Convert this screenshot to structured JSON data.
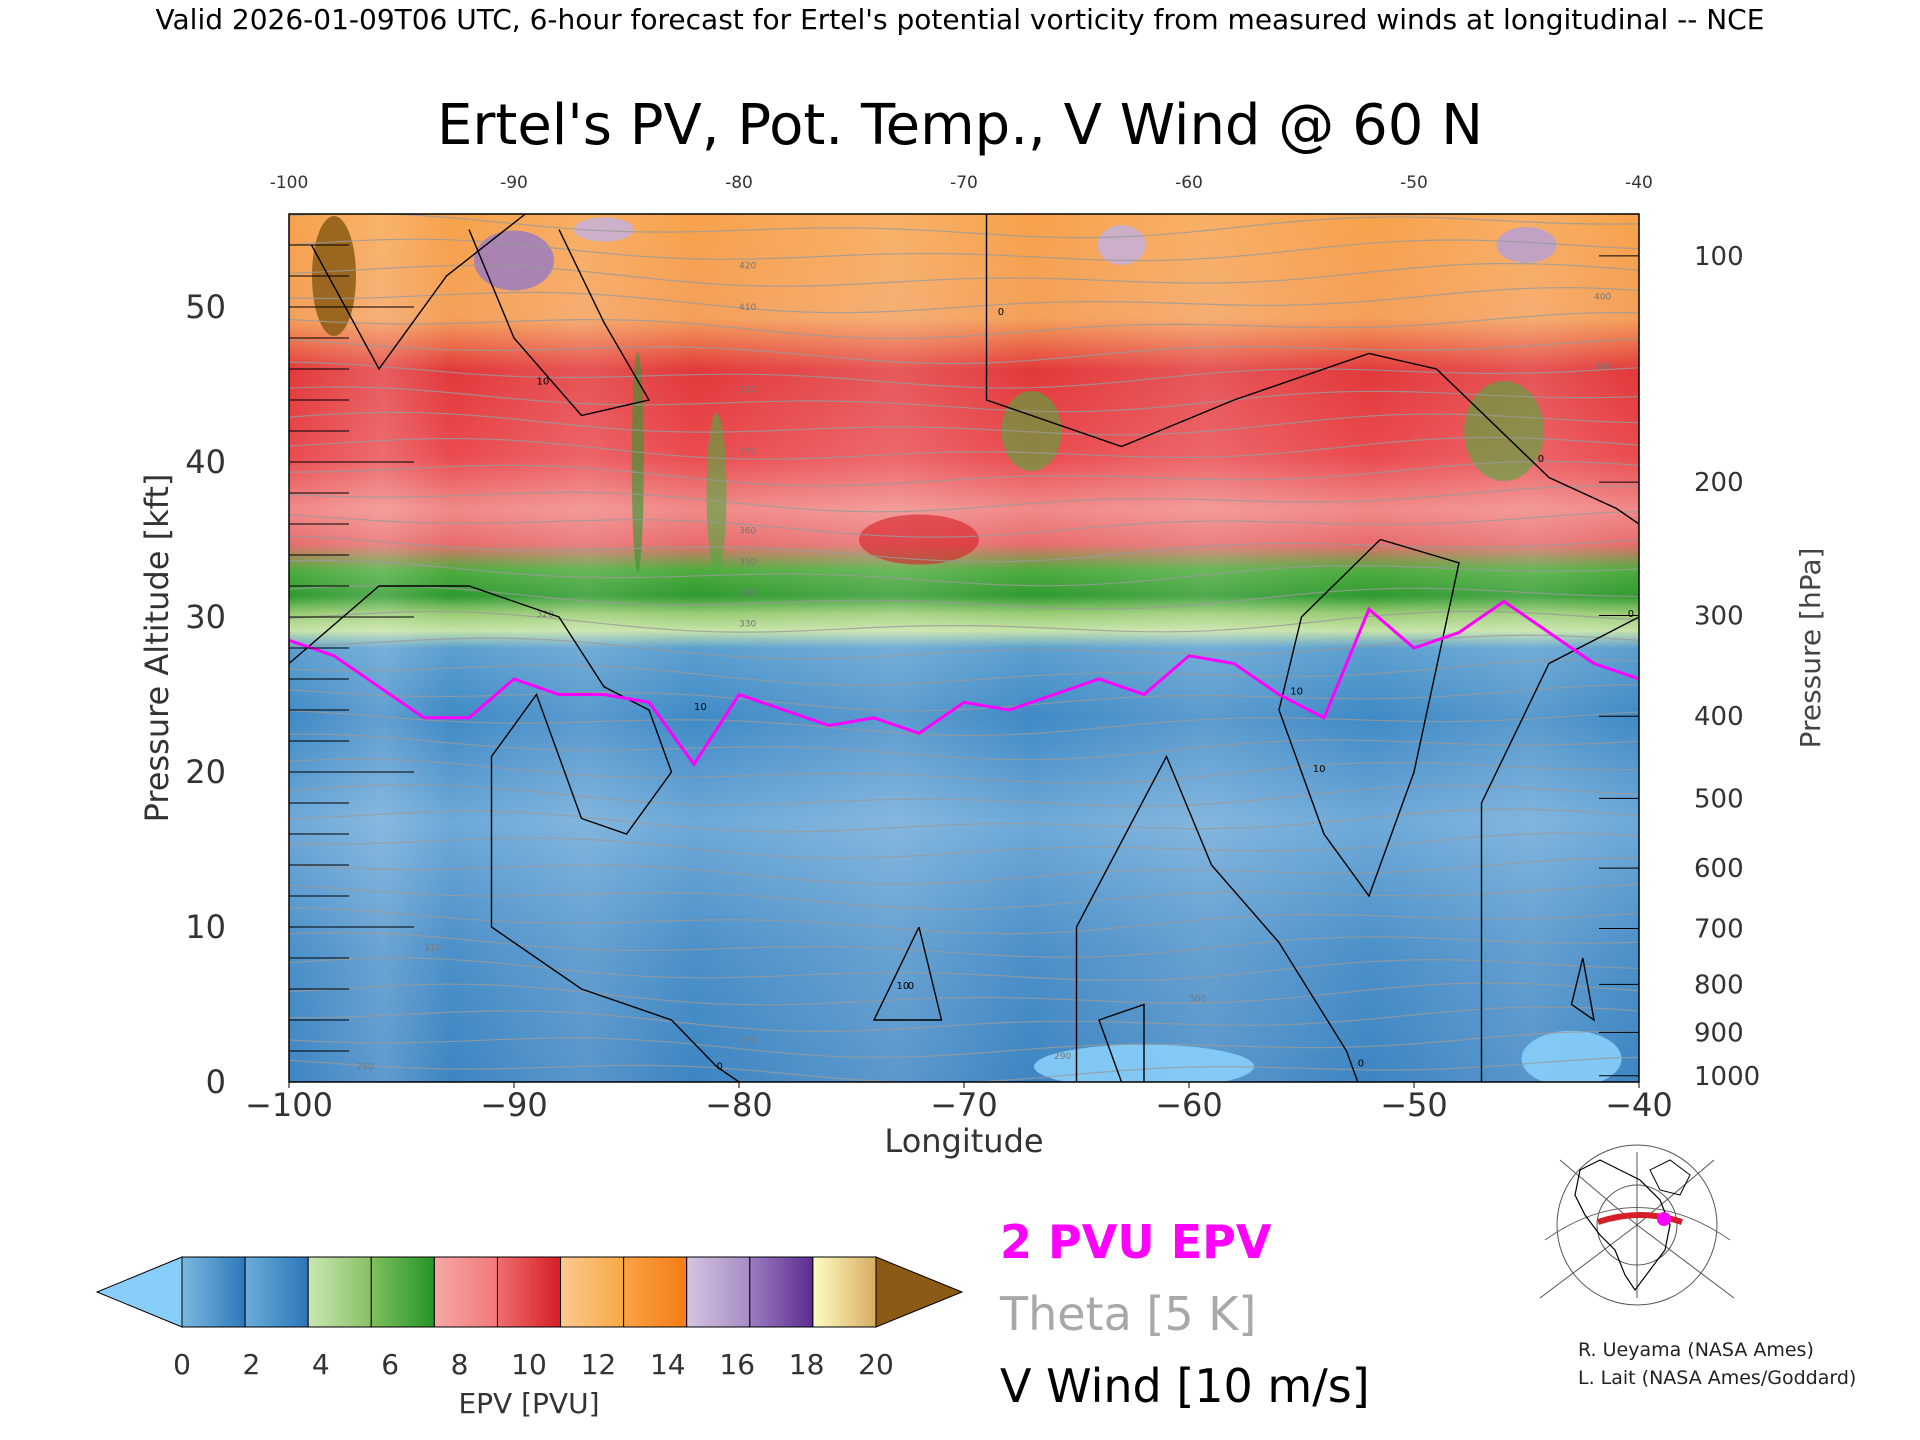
{
  "header": {
    "valid_line": "Valid 2026-01-09T06 UTC, 6-hour forecast for Ertel's potential vorticity from measured winds at longitudinal -- NCE"
  },
  "chart_data": {
    "type": "heatmap",
    "title": "Ertel's PV, Pot. Temp., V Wind @ 60 N",
    "xlabel": "Longitude",
    "ylabel_left": "Pressure Altitude [kft]",
    "ylabel_right": "Pressure [hPa]",
    "xlim": [
      -100,
      -40
    ],
    "ylim": [
      0,
      56
    ],
    "x_ticks": [
      -100,
      -90,
      -80,
      -70,
      -60,
      -50,
      -40
    ],
    "x_tick_labels": [
      "−100",
      "−90",
      "−80",
      "−70",
      "−60",
      "−50",
      "−40"
    ],
    "top_tick_labels": [
      "-100",
      "-90",
      "-80",
      "-70",
      "-60",
      "-50",
      "-40"
    ],
    "y_ticks": [
      0,
      10,
      20,
      30,
      40,
      50
    ],
    "y_tick_labels": [
      "0",
      "10",
      "20",
      "30",
      "40",
      "50"
    ],
    "pressure_ticks": [
      {
        "label": "100",
        "kft": 53.3
      },
      {
        "label": "200",
        "kft": 38.7
      },
      {
        "label": "300",
        "kft": 30.1
      },
      {
        "label": "400",
        "kft": 23.6
      },
      {
        "label": "500",
        "kft": 18.3
      },
      {
        "label": "600",
        "kft": 13.8
      },
      {
        "label": "700",
        "kft": 9.9
      },
      {
        "label": "800",
        "kft": 6.3
      },
      {
        "label": "900",
        "kft": 3.2
      },
      {
        "label": "1000",
        "kft": 0.4
      }
    ],
    "epv_profile": {
      "longitudes": [
        -100,
        -98,
        -96,
        -94,
        -92,
        -90,
        -88,
        -86,
        -84,
        -82,
        -80,
        -78,
        -76,
        -74,
        -72,
        -70,
        -68,
        -66,
        -64,
        -62,
        -60,
        -58,
        -56,
        -54,
        -52,
        -50,
        -48,
        -46,
        -44,
        -42,
        -40
      ],
      "two_pvu_altitude_kft": [
        28.5,
        27.5,
        25.5,
        23.5,
        23.5,
        26,
        25,
        25,
        24.5,
        20.5,
        25,
        24,
        23,
        23.5,
        22.5,
        24.5,
        24,
        25,
        26,
        25,
        27.5,
        27,
        25,
        23.5,
        30.5,
        28,
        29,
        31,
        29,
        27,
        26
      ]
    },
    "theta_contours_K": [
      260,
      265,
      270,
      275,
      280,
      285,
      290,
      295,
      300,
      305,
      310,
      315,
      320,
      325,
      330,
      335,
      340,
      345,
      350,
      355,
      360,
      365,
      370,
      375,
      380,
      385,
      390,
      395,
      400,
      405,
      410,
      415,
      420,
      425,
      430
    ],
    "theta_labels": [
      "260",
      "270",
      "290",
      "300",
      "310",
      "320",
      "330",
      "340",
      "350",
      "360",
      "370",
      "380",
      "390",
      "400",
      "410",
      "420"
    ],
    "v_wind_contour_labels": [
      "0",
      "10",
      "10",
      "0",
      "0",
      "10",
      "10",
      "0",
      "0",
      "0",
      "10"
    ],
    "colorbar": {
      "label": "EPV [PVU]",
      "tick_labels": [
        "0",
        "2",
        "4",
        "6",
        "8",
        "10",
        "12",
        "14",
        "16",
        "18",
        "20"
      ],
      "under_color": "#87cefa",
      "over_color": "#8b5a14",
      "bins": [
        [
          "#7ab8de",
          "#2e78bb"
        ],
        [
          "#6aaed8",
          "#2c76b8"
        ],
        [
          "#cbe6b3",
          "#86c163"
        ],
        [
          "#7fc15f",
          "#259326"
        ],
        [
          "#f6a8a3",
          "#f2787a"
        ],
        [
          "#ef6f70",
          "#d51f26"
        ],
        [
          "#fbc98f",
          "#f8a845"
        ],
        [
          "#fba247",
          "#f47d12"
        ],
        [
          "#d6c5e0",
          "#a58cc6"
        ],
        [
          "#9b7dc1",
          "#5d2c91"
        ],
        [
          "#fdfdc3",
          "#d7ad60"
        ]
      ]
    }
  },
  "legend": {
    "epv_label": "2 PVU EPV",
    "theta_label": "Theta [5 K]",
    "wind_label": "V Wind [10 m/s]",
    "epv_color": "#ff00ff",
    "theta_color": "#a8a8a8",
    "wind_color": "#000000"
  },
  "credits": {
    "line1": "R. Ueyama (NASA Ames)",
    "line2": "L. Lait (NASA Ames/Goddard)"
  }
}
